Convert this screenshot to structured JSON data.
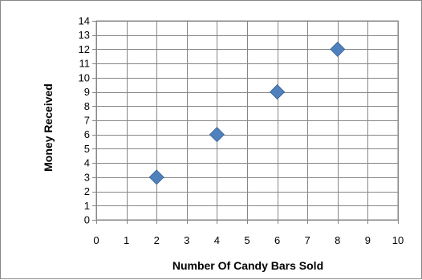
{
  "chart_data": {
    "type": "scatter",
    "title": "",
    "xlabel": "Number Of Candy Bars Sold",
    "ylabel": "Money Received",
    "xlim": [
      0,
      10
    ],
    "ylim": [
      0,
      14
    ],
    "x_ticks": [
      0,
      1,
      2,
      3,
      4,
      5,
      6,
      7,
      8,
      9,
      10
    ],
    "y_ticks": [
      0,
      1,
      2,
      3,
      4,
      5,
      6,
      7,
      8,
      9,
      10,
      11,
      12,
      13,
      14
    ],
    "grid": true,
    "legend": "none",
    "marker": "diamond",
    "series": [
      {
        "x": [
          2,
          4,
          6,
          8
        ],
        "y": [
          3,
          6,
          9,
          12
        ],
        "color": "#4F81BD"
      }
    ]
  }
}
